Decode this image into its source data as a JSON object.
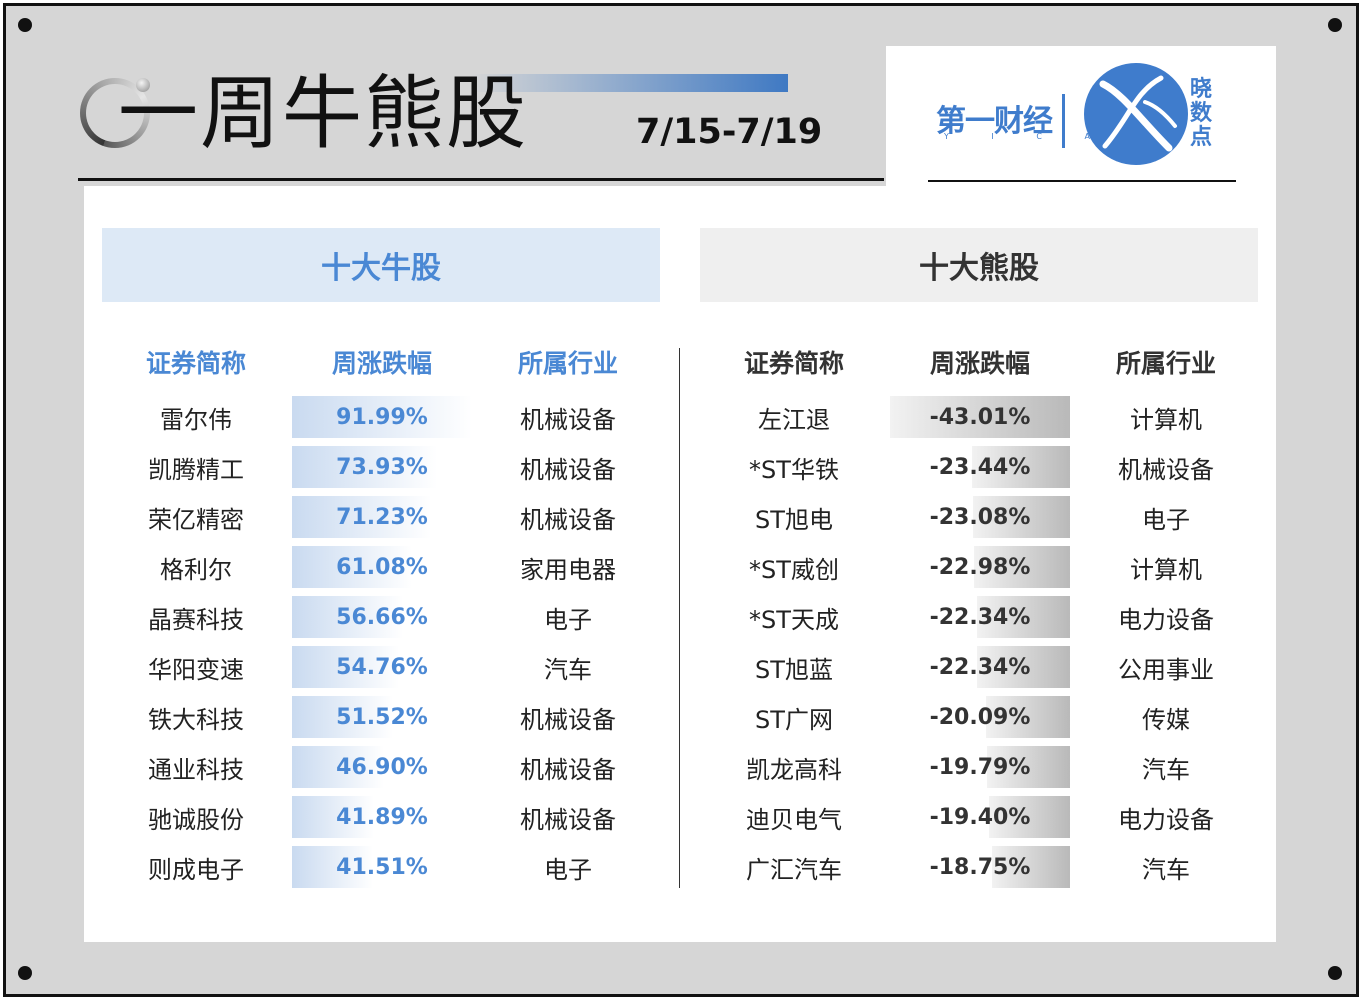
{
  "header": {
    "title": "一周牛熊股",
    "date_range": "7/15-7/19"
  },
  "logo": {
    "wordmark": "第一财经",
    "sub": "Y I C A I",
    "brand_vertical": [
      "晓",
      "数",
      "点"
    ]
  },
  "colors": {
    "accent_blue": "#4a88d4",
    "bull_header_bg": "#dde9f6",
    "bear_header_bg": "#efefef",
    "frame_bg": "#d6d6d6"
  },
  "bull": {
    "heading": "十大牛股",
    "columns": [
      "证券简称",
      "周涨跌幅",
      "所属行业"
    ],
    "rows": [
      {
        "name": "雷尔伟",
        "change": "91.99%",
        "value": 91.99,
        "industry": "机械设备"
      },
      {
        "name": "凯腾精工",
        "change": "73.93%",
        "value": 73.93,
        "industry": "机械设备"
      },
      {
        "name": "荣亿精密",
        "change": "71.23%",
        "value": 71.23,
        "industry": "机械设备"
      },
      {
        "name": "格利尔",
        "change": "61.08%",
        "value": 61.08,
        "industry": "家用电器"
      },
      {
        "name": "晶赛科技",
        "change": "56.66%",
        "value": 56.66,
        "industry": "电子"
      },
      {
        "name": "华阳变速",
        "change": "54.76%",
        "value": 54.76,
        "industry": "汽车"
      },
      {
        "name": "铁大科技",
        "change": "51.52%",
        "value": 51.52,
        "industry": "机械设备"
      },
      {
        "name": "通业科技",
        "change": "46.90%",
        "value": 46.9,
        "industry": "机械设备"
      },
      {
        "name": "驰诚股份",
        "change": "41.89%",
        "value": 41.89,
        "industry": "机械设备"
      },
      {
        "name": "则成电子",
        "change": "41.51%",
        "value": 41.51,
        "industry": "电子"
      }
    ]
  },
  "bear": {
    "heading": "十大熊股",
    "columns": [
      "证券简称",
      "周涨跌幅",
      "所属行业"
    ],
    "rows": [
      {
        "name": "左江退",
        "change": "-43.01%",
        "value": -43.01,
        "industry": "计算机"
      },
      {
        "name": "*ST华铁",
        "change": "-23.44%",
        "value": -23.44,
        "industry": "机械设备"
      },
      {
        "name": "ST旭电",
        "change": "-23.08%",
        "value": -23.08,
        "industry": "电子"
      },
      {
        "name": "*ST威创",
        "change": "-22.98%",
        "value": -22.98,
        "industry": "计算机"
      },
      {
        "name": "*ST天成",
        "change": "-22.34%",
        "value": -22.34,
        "industry": "电力设备"
      },
      {
        "name": "ST旭蓝",
        "change": "-22.34%",
        "value": -22.34,
        "industry": "公用事业"
      },
      {
        "name": "ST广网",
        "change": "-20.09%",
        "value": -20.09,
        "industry": "传媒"
      },
      {
        "name": "凯龙高科",
        "change": "-19.79%",
        "value": -19.79,
        "industry": "汽车"
      },
      {
        "name": "迪贝电气",
        "change": "-19.40%",
        "value": -19.4,
        "industry": "电力设备"
      },
      {
        "name": "广汇汽车",
        "change": "-18.75%",
        "value": -18.75,
        "industry": "汽车"
      }
    ]
  }
}
